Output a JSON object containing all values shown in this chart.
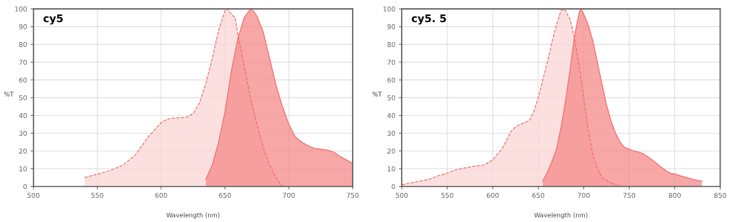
{
  "chart_data": [
    {
      "type": "area",
      "title": "cy5",
      "xlabel": "Wavelength (nm)",
      "ylabel": "%T",
      "xlim": [
        500,
        750
      ],
      "xticks": [
        500,
        550,
        600,
        650,
        700,
        750
      ],
      "ylim": [
        0,
        100
      ],
      "yticks": [
        0,
        10,
        20,
        30,
        40,
        50,
        60,
        70,
        80,
        90,
        100
      ],
      "grid": true,
      "series": [
        {
          "color": "#fbd6d6",
          "line_style": "dashed",
          "x": [
            540,
            550,
            560,
            570,
            580,
            590,
            600,
            605,
            610,
            620,
            625,
            630,
            635,
            640,
            645,
            650,
            652,
            655,
            658,
            660,
            665,
            670,
            675,
            680,
            685,
            690,
            695
          ],
          "values": [
            5,
            7,
            9,
            12,
            18,
            28,
            36,
            38,
            38.5,
            39,
            41,
            47,
            58,
            72,
            88,
            99,
            100,
            97,
            95,
            86,
            68,
            50,
            35,
            22,
            12,
            5,
            0
          ]
        },
        {
          "color": "#f58a8a",
          "line_style": "solid",
          "x": [
            635,
            640,
            645,
            650,
            655,
            660,
            665,
            670,
            672,
            675,
            680,
            685,
            690,
            695,
            700,
            705,
            710,
            715,
            720,
            730,
            735,
            740,
            745,
            750
          ],
          "values": [
            4,
            12,
            25,
            42,
            65,
            83,
            95,
            100,
            99,
            96,
            87,
            72,
            57,
            45,
            35,
            28,
            25,
            23,
            21.5,
            20.5,
            19.5,
            17,
            15,
            13
          ]
        }
      ]
    },
    {
      "type": "area",
      "title": "cy5. 5",
      "xlabel": "Wavelength (nm)",
      "ylabel": "%T",
      "xlim": [
        500,
        850
      ],
      "xticks": [
        500,
        550,
        600,
        650,
        700,
        750,
        800,
        850
      ],
      "ylim": [
        0,
        100
      ],
      "yticks": [
        0,
        10,
        20,
        30,
        40,
        50,
        60,
        70,
        80,
        90,
        100
      ],
      "grid": true,
      "series": [
        {
          "color": "#fbd6d6",
          "line_style": "dashed",
          "x": [
            500,
            510,
            520,
            530,
            540,
            550,
            560,
            570,
            580,
            590,
            600,
            610,
            615,
            620,
            625,
            630,
            635,
            640,
            645,
            650,
            655,
            660,
            665,
            670,
            675,
            678,
            680,
            685,
            690,
            695,
            700,
            705,
            710,
            715,
            720,
            730,
            740
          ],
          "values": [
            1,
            2,
            3,
            4,
            6,
            7.5,
            9.5,
            10.5,
            11.5,
            12,
            15,
            21,
            26,
            31,
            33.5,
            35,
            36,
            37,
            42,
            50,
            60,
            70,
            81,
            91,
            99,
            100,
            99,
            94,
            83,
            68,
            50,
            32,
            18,
            10,
            5,
            2,
            0.5
          ]
        },
        {
          "color": "#f58a8a",
          "line_style": "solid",
          "x": [
            655,
            660,
            665,
            670,
            675,
            680,
            685,
            690,
            695,
            697,
            700,
            705,
            710,
            715,
            720,
            725,
            730,
            735,
            740,
            745,
            750,
            755,
            760,
            765,
            770,
            775,
            780,
            785,
            790,
            795,
            800,
            810,
            820,
            830
          ],
          "values": [
            3,
            8,
            14,
            21,
            33,
            48,
            66,
            85,
            98,
            100,
            97,
            91,
            82,
            70,
            58,
            46,
            37,
            30,
            25,
            22,
            21,
            20,
            19.5,
            18.5,
            17,
            15,
            13,
            11,
            9,
            7.5,
            7,
            5.5,
            4,
            3
          ]
        }
      ]
    }
  ]
}
